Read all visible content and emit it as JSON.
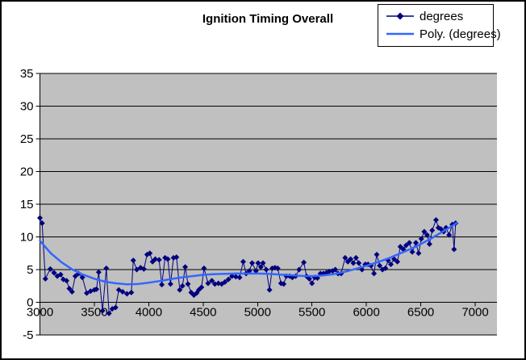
{
  "chart_data": {
    "type": "scatter",
    "title": "Ignition Timing Overall",
    "xlabel": "",
    "ylabel": "",
    "xlim": [
      3000,
      7200
    ],
    "ylim": [
      -5,
      35
    ],
    "x_ticks": [
      3000,
      3500,
      4000,
      4500,
      5000,
      5500,
      6000,
      6500,
      7000
    ],
    "y_ticks": [
      -5,
      0,
      5,
      10,
      15,
      20,
      25,
      30,
      35
    ],
    "grid": "horizontal-major",
    "grid_color": "#000000",
    "plot_bg": "#C0C0C0",
    "chart_bg": "#FFFFFF",
    "legend_position": "top-right",
    "series": [
      {
        "name": "degrees",
        "type": "line-with-markers",
        "marker": "diamond",
        "color": "#000080",
        "points": [
          [
            3000,
            12.9
          ],
          [
            3020,
            12.1
          ],
          [
            3050,
            3.6
          ],
          [
            3095,
            5.1
          ],
          [
            3130,
            4.5
          ],
          [
            3160,
            4.0
          ],
          [
            3190,
            4.25
          ],
          [
            3215,
            3.5
          ],
          [
            3245,
            3.3
          ],
          [
            3270,
            2.1
          ],
          [
            3295,
            1.6
          ],
          [
            3325,
            4.0
          ],
          [
            3355,
            4.4
          ],
          [
            3390,
            3.8
          ],
          [
            3430,
            1.4
          ],
          [
            3465,
            1.7
          ],
          [
            3500,
            1.9
          ],
          [
            3520,
            2.0
          ],
          [
            3540,
            4.6
          ],
          [
            3575,
            -1.3
          ],
          [
            3610,
            5.2
          ],
          [
            3635,
            -1.7
          ],
          [
            3665,
            -1.0
          ],
          [
            3695,
            -0.8
          ],
          [
            3725,
            1.9
          ],
          [
            3760,
            1.6
          ],
          [
            3800,
            1.3
          ],
          [
            3840,
            1.5
          ],
          [
            3858,
            6.4
          ],
          [
            3890,
            5.0
          ],
          [
            3925,
            5.3
          ],
          [
            3955,
            5.1
          ],
          [
            3985,
            7.3
          ],
          [
            4010,
            7.5
          ],
          [
            4035,
            6.2
          ],
          [
            4060,
            6.6
          ],
          [
            4095,
            6.5
          ],
          [
            4120,
            2.7
          ],
          [
            4150,
            6.8
          ],
          [
            4175,
            6.6
          ],
          [
            4200,
            2.8
          ],
          [
            4228,
            6.8
          ],
          [
            4255,
            6.9
          ],
          [
            4285,
            1.9
          ],
          [
            4310,
            2.5
          ],
          [
            4335,
            5.4
          ],
          [
            4360,
            2.8
          ],
          [
            4390,
            1.5
          ],
          [
            4415,
            1.1
          ],
          [
            4440,
            1.4
          ],
          [
            4460,
            1.9
          ],
          [
            4485,
            2.3
          ],
          [
            4508,
            5.2
          ],
          [
            4545,
            2.9
          ],
          [
            4580,
            3.3
          ],
          [
            4608,
            2.8
          ],
          [
            4640,
            2.9
          ],
          [
            4670,
            2.8
          ],
          [
            4700,
            3.1
          ],
          [
            4732,
            3.5
          ],
          [
            4765,
            4.0
          ],
          [
            4800,
            3.9
          ],
          [
            4835,
            3.8
          ],
          [
            4868,
            6.2
          ],
          [
            4895,
            4.4
          ],
          [
            4925,
            4.8
          ],
          [
            4950,
            6.0
          ],
          [
            4985,
            4.8
          ],
          [
            5005,
            6.0
          ],
          [
            5030,
            5.4
          ],
          [
            5050,
            6.0
          ],
          [
            5080,
            5.0
          ],
          [
            5110,
            1.9
          ],
          [
            5135,
            5.2
          ],
          [
            5160,
            5.3
          ],
          [
            5185,
            5.2
          ],
          [
            5215,
            2.9
          ],
          [
            5240,
            2.8
          ],
          [
            5265,
            4.0
          ],
          [
            5295,
            4.0
          ],
          [
            5320,
            3.8
          ],
          [
            5350,
            4.0
          ],
          [
            5382,
            5.0
          ],
          [
            5425,
            6.1
          ],
          [
            5450,
            4.0
          ],
          [
            5475,
            3.6
          ],
          [
            5500,
            2.9
          ],
          [
            5525,
            3.8
          ],
          [
            5550,
            3.7
          ],
          [
            5578,
            4.4
          ],
          [
            5605,
            4.4
          ],
          [
            5632,
            4.5
          ],
          [
            5658,
            4.7
          ],
          [
            5690,
            4.8
          ],
          [
            5715,
            5.0
          ],
          [
            5740,
            4.4
          ],
          [
            5768,
            4.4
          ],
          [
            5805,
            6.8
          ],
          [
            5830,
            6.2
          ],
          [
            5855,
            6.6
          ],
          [
            5880,
            6.0
          ],
          [
            5905,
            6.8
          ],
          [
            5930,
            6.0
          ],
          [
            5960,
            5.0
          ],
          [
            5990,
            5.8
          ],
          [
            6015,
            5.8
          ],
          [
            6042,
            5.6
          ],
          [
            6070,
            4.4
          ],
          [
            6095,
            7.3
          ],
          [
            6122,
            5.6
          ],
          [
            6148,
            5.0
          ],
          [
            6175,
            5.2
          ],
          [
            6200,
            6.4
          ],
          [
            6225,
            5.8
          ],
          [
            6255,
            6.6
          ],
          [
            6285,
            6.2
          ],
          [
            6312,
            8.5
          ],
          [
            6340,
            8.1
          ],
          [
            6365,
            8.7
          ],
          [
            6395,
            9.1
          ],
          [
            6422,
            7.7
          ],
          [
            6455,
            9.1
          ],
          [
            6480,
            7.5
          ],
          [
            6505,
            9.7
          ],
          [
            6532,
            10.8
          ],
          [
            6558,
            10.3
          ],
          [
            6580,
            8.9
          ],
          [
            6605,
            11.0
          ],
          [
            6640,
            12.6
          ],
          [
            6662,
            11.4
          ],
          [
            6685,
            11.2
          ],
          [
            6710,
            10.8
          ],
          [
            6732,
            11.4
          ],
          [
            6760,
            10.3
          ],
          [
            6790,
            11.9
          ],
          [
            6806,
            8.1
          ],
          [
            6820,
            12.1
          ]
        ]
      },
      {
        "name": "Poly. (degrees)",
        "type": "trendline",
        "color": "#3366FF",
        "points": [
          [
            3000,
            9.4
          ],
          [
            3100,
            7.5
          ],
          [
            3200,
            6.1
          ],
          [
            3300,
            5.0
          ],
          [
            3400,
            4.2
          ],
          [
            3500,
            3.6
          ],
          [
            3600,
            3.15
          ],
          [
            3700,
            2.9
          ],
          [
            3800,
            2.75
          ],
          [
            3900,
            2.8
          ],
          [
            4000,
            3.0
          ],
          [
            4100,
            3.25
          ],
          [
            4200,
            3.55
          ],
          [
            4300,
            3.8
          ],
          [
            4400,
            4.0
          ],
          [
            4500,
            4.2
          ],
          [
            4600,
            4.3
          ],
          [
            4700,
            4.35
          ],
          [
            4800,
            4.4
          ],
          [
            4900,
            4.4
          ],
          [
            5000,
            4.4
          ],
          [
            5100,
            4.35
          ],
          [
            5200,
            4.25
          ],
          [
            5300,
            4.15
          ],
          [
            5400,
            4.05
          ],
          [
            5500,
            4.0
          ],
          [
            5600,
            4.1
          ],
          [
            5700,
            4.3
          ],
          [
            5800,
            4.65
          ],
          [
            5900,
            5.1
          ],
          [
            6000,
            5.6
          ],
          [
            6100,
            6.1
          ],
          [
            6200,
            6.7
          ],
          [
            6300,
            7.4
          ],
          [
            6400,
            8.1
          ],
          [
            6500,
            8.9
          ],
          [
            6600,
            9.8
          ],
          [
            6700,
            10.8
          ],
          [
            6800,
            11.8
          ],
          [
            6830,
            12.15
          ]
        ]
      }
    ]
  }
}
